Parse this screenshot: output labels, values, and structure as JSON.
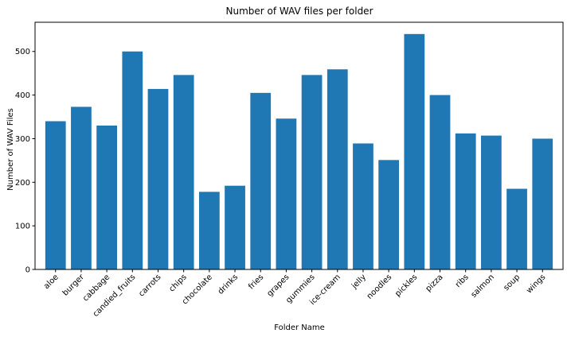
{
  "chart_data": {
    "type": "bar",
    "title": "Number of WAV files per folder",
    "xlabel": "Folder Name",
    "ylabel": "Number of WAV Files",
    "categories": [
      "aloe",
      "burger",
      "cabbage",
      "candied_fruits",
      "carrots",
      "chips",
      "chocolate",
      "drinks",
      "fries",
      "grapes",
      "gummies",
      "ice-cream",
      "jelly",
      "noodles",
      "pickles",
      "pizza",
      "ribs",
      "salmon",
      "soup",
      "wings"
    ],
    "values": [
      340,
      373,
      330,
      500,
      414,
      446,
      178,
      192,
      405,
      346,
      446,
      459,
      289,
      251,
      540,
      400,
      312,
      307,
      185,
      300
    ],
    "yticks": [
      0,
      100,
      200,
      300,
      400,
      500
    ],
    "ylim": [
      0,
      567
    ],
    "bar_color": "#1f77b4",
    "grid": false,
    "legend": "none"
  }
}
